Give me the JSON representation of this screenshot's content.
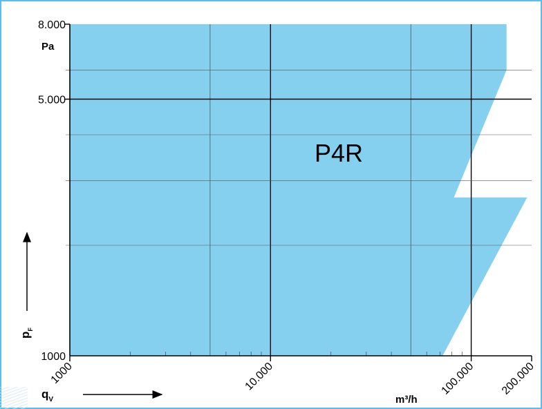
{
  "chart_data": {
    "type": "area",
    "product_label": "P4R",
    "x_scale": "log",
    "y_scale": "log",
    "xlim": [
      1000,
      200000
    ],
    "ylim": [
      1000,
      8000
    ],
    "x_unit": "m³/h",
    "y_unit": "Pa",
    "x_axis_symbol": "q",
    "x_axis_symbol_sub": "V",
    "y_axis_symbol": "p",
    "y_axis_symbol_sub": "F",
    "x_tick_labels": [
      {
        "value": 1000,
        "label": "1000"
      },
      {
        "value": 10000,
        "label": "10.000"
      },
      {
        "value": 100000,
        "label": "100.000"
      },
      {
        "value": 200000,
        "label": "200.000"
      }
    ],
    "y_tick_labels": [
      {
        "value": 1000,
        "label": "1000"
      },
      {
        "value": 5000,
        "label": "5.000"
      },
      {
        "value": 8000,
        "label": "8.000"
      }
    ],
    "x_major_gridlines": [
      10000,
      100000
    ],
    "x_minor_gridlines": [
      2000,
      3000,
      4000,
      5000,
      6000,
      7000,
      8000,
      9000,
      20000,
      30000,
      40000,
      50000,
      60000,
      70000,
      80000,
      90000
    ],
    "x_medium_gridlines": [
      5000,
      50000
    ],
    "y_major_gridlines": [
      5000
    ],
    "y_minor_gridlines": [
      2000,
      3000,
      4000,
      6000
    ],
    "region": {
      "color": "#86d0ef",
      "points": [
        {
          "x": 1000,
          "y": 1000
        },
        {
          "x": 1000,
          "y": 8000
        },
        {
          "x": 150000,
          "y": 8000
        },
        {
          "x": 150000,
          "y": 6000
        },
        {
          "x": 82000,
          "y": 2700
        },
        {
          "x": 190000,
          "y": 2700
        },
        {
          "x": 72000,
          "y": 1000
        }
      ]
    },
    "grid": true,
    "legend": "none",
    "colors": {
      "fill": "#86d0ef",
      "axis": "#000000",
      "grid": "#333333",
      "border": "#5bbde8"
    }
  }
}
